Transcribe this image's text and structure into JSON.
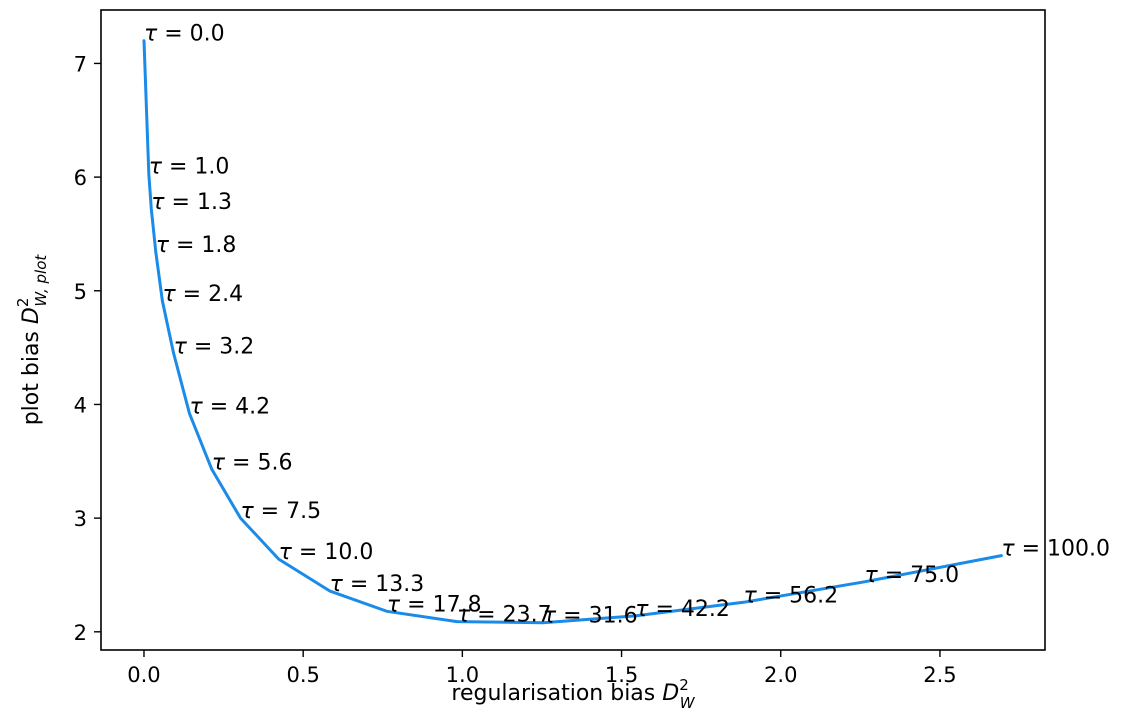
{
  "chart_data": {
    "type": "line",
    "title": "",
    "xlabel": "regularisation bias D²_W",
    "xlabel_parts": {
      "prefix": "regularisation bias ",
      "symbol": "D",
      "sup": "2",
      "sub": "W"
    },
    "ylabel": "plot bias D²_W, plot",
    "ylabel_parts": {
      "prefix": "plot bias ",
      "symbol": "D",
      "sup": "2",
      "sub": "W, plot"
    },
    "xlim": [
      -0.135,
      2.83
    ],
    "ylim": [
      1.84,
      7.47
    ],
    "x_ticks": [
      {
        "value": 0.0,
        "label": "0.0"
      },
      {
        "value": 0.5,
        "label": "0.5"
      },
      {
        "value": 1.0,
        "label": "1.0"
      },
      {
        "value": 1.5,
        "label": "1.5"
      },
      {
        "value": 2.0,
        "label": "2.0"
      },
      {
        "value": 2.5,
        "label": "2.5"
      }
    ],
    "y_ticks": [
      {
        "value": 2,
        "label": "2"
      },
      {
        "value": 3,
        "label": "3"
      },
      {
        "value": 4,
        "label": "4"
      },
      {
        "value": 5,
        "label": "5"
      },
      {
        "value": 6,
        "label": "6"
      },
      {
        "value": 7,
        "label": "7"
      }
    ],
    "line_color": "#1a8be8",
    "grid": false,
    "series": [
      {
        "points": [
          {
            "x": 0.0,
            "y": 7.2,
            "label": "τ = 0.0"
          },
          {
            "x": 0.015,
            "y": 6.03,
            "label": "τ = 1.0"
          },
          {
            "x": 0.023,
            "y": 5.72,
            "label": "τ = 1.3"
          },
          {
            "x": 0.037,
            "y": 5.34,
            "label": "τ = 1.8"
          },
          {
            "x": 0.058,
            "y": 4.91,
            "label": "τ = 2.4"
          },
          {
            "x": 0.093,
            "y": 4.45,
            "label": "τ = 3.2"
          },
          {
            "x": 0.143,
            "y": 3.92,
            "label": "τ = 4.2"
          },
          {
            "x": 0.213,
            "y": 3.43,
            "label": "τ = 5.6"
          },
          {
            "x": 0.303,
            "y": 3.0,
            "label": "τ = 7.5"
          },
          {
            "x": 0.423,
            "y": 2.64,
            "label": "τ = 10.0"
          },
          {
            "x": 0.583,
            "y": 2.36,
            "label": "τ = 13.3"
          },
          {
            "x": 0.763,
            "y": 2.18,
            "label": "τ = 17.8"
          },
          {
            "x": 0.983,
            "y": 2.09,
            "label": "τ = 23.7"
          },
          {
            "x": 1.253,
            "y": 2.08,
            "label": "τ = 31.6"
          },
          {
            "x": 1.543,
            "y": 2.14,
            "label": "τ = 42.2"
          },
          {
            "x": 1.883,
            "y": 2.26,
            "label": "τ = 56.2"
          },
          {
            "x": 2.263,
            "y": 2.44,
            "label": "τ = 75.0"
          },
          {
            "x": 2.693,
            "y": 2.67,
            "label": "τ = 100.0"
          }
        ]
      }
    ]
  }
}
